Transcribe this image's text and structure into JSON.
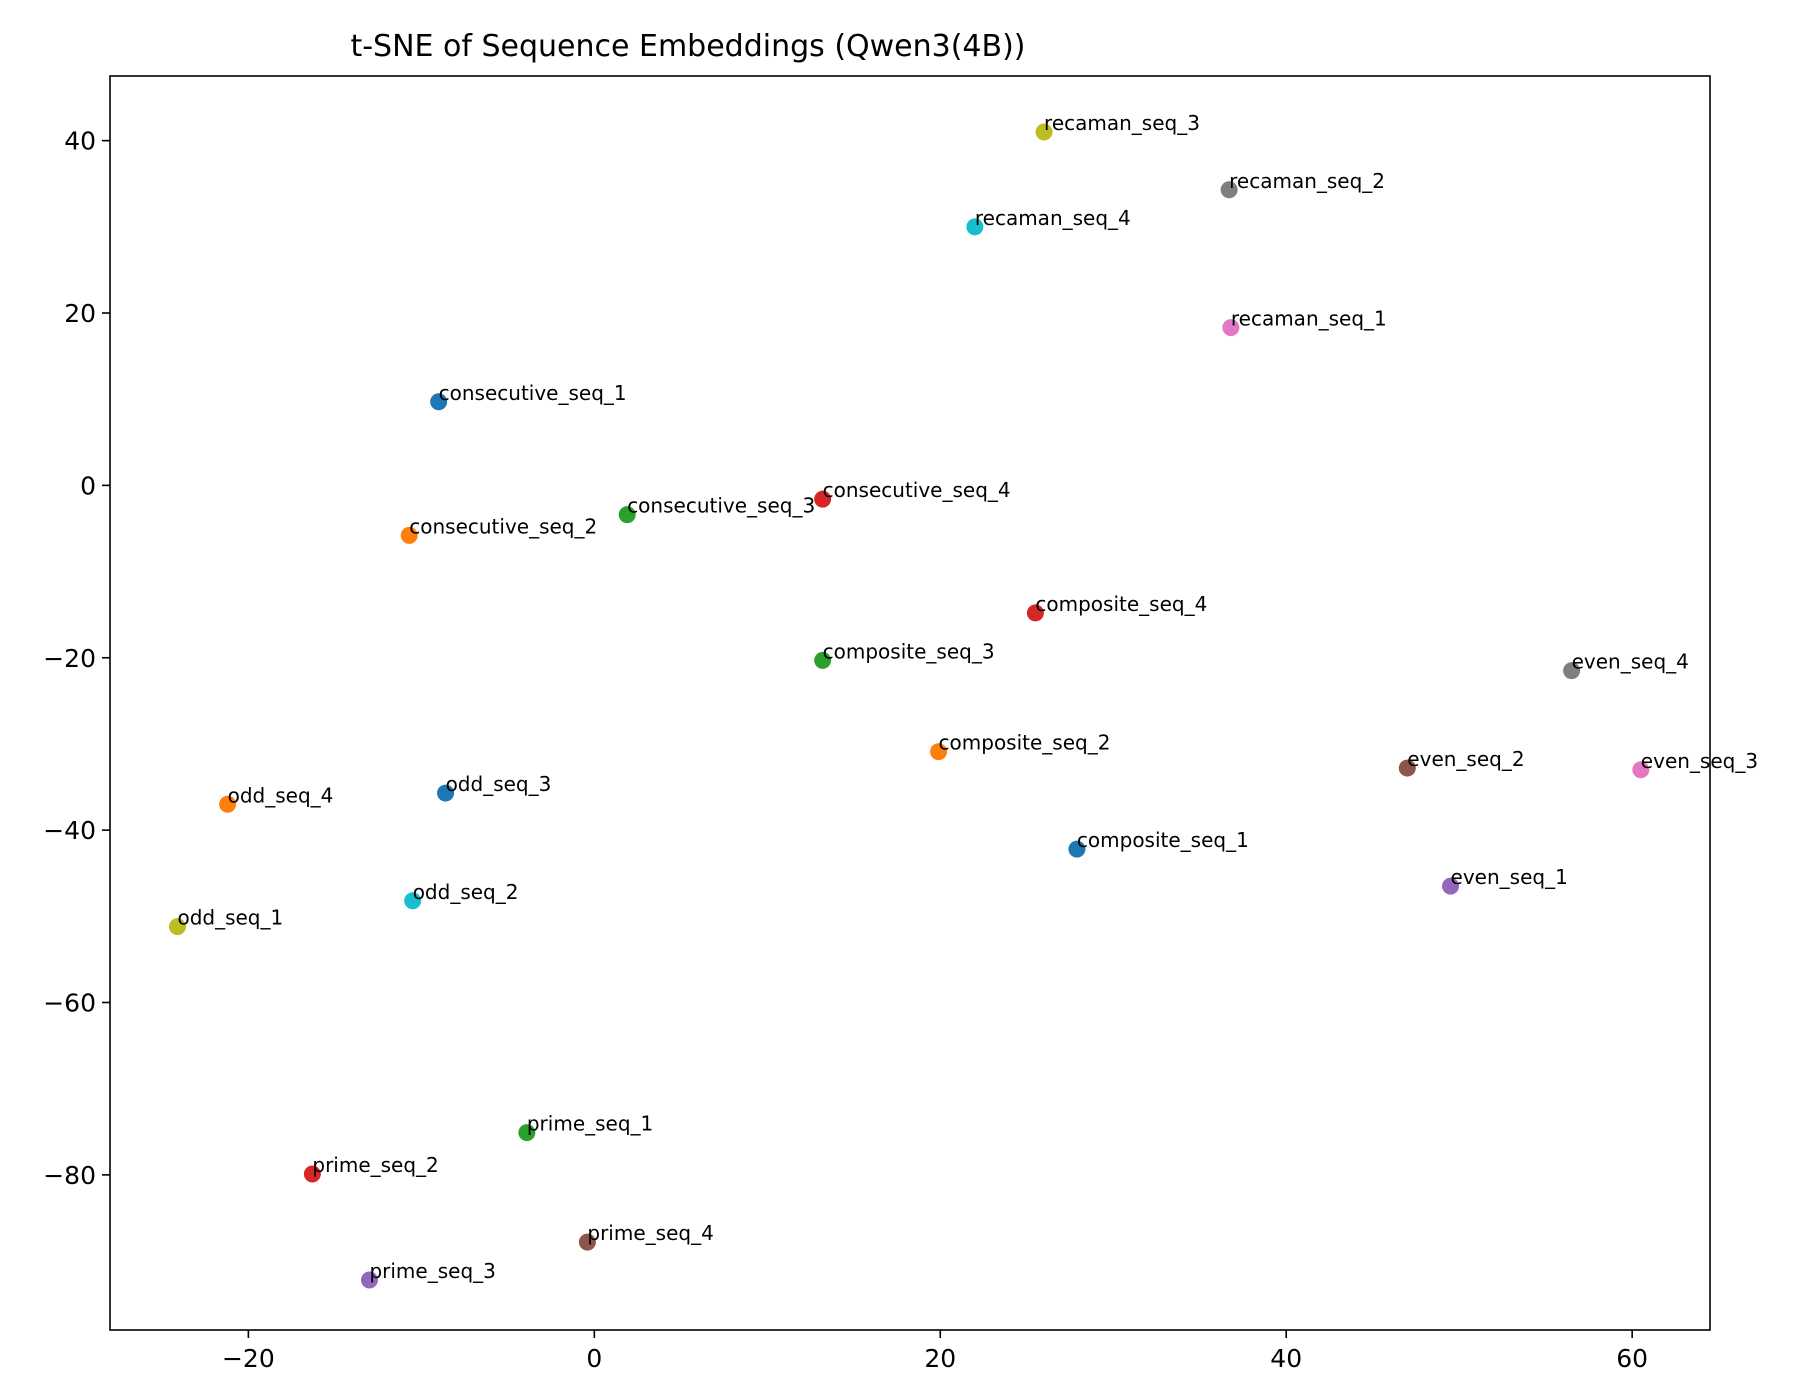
{
  "chart_data": {
    "type": "scatter",
    "title": "t-SNE of Sequence Embeddings (Qwen3(4B))",
    "xlabel": "",
    "ylabel": "",
    "xlim": [
      -28,
      64.5
    ],
    "ylim": [
      -98,
      47.5
    ],
    "xticks": [
      -20,
      0,
      20,
      40,
      60
    ],
    "yticks": [
      40,
      20,
      0,
      -20,
      -40,
      -60,
      -80
    ],
    "grid": false,
    "legend": "none",
    "points": [
      {
        "label": "recaman_seq_3",
        "x": 26.0,
        "y": 41.0,
        "color": "#bcbd22"
      },
      {
        "label": "recaman_seq_2",
        "x": 36.7,
        "y": 34.3,
        "color": "#7f7f7f"
      },
      {
        "label": "recaman_seq_4",
        "x": 22.0,
        "y": 30.0,
        "color": "#17becf"
      },
      {
        "label": "recaman_seq_1",
        "x": 36.8,
        "y": 18.3,
        "color": "#e377c2"
      },
      {
        "label": "consecutive_seq_1",
        "x": -9.0,
        "y": 9.7,
        "color": "#1f77b4"
      },
      {
        "label": "consecutive_seq_4",
        "x": 13.2,
        "y": -1.6,
        "color": "#d62728"
      },
      {
        "label": "consecutive_seq_3",
        "x": 1.9,
        "y": -3.4,
        "color": "#2ca02c"
      },
      {
        "label": "consecutive_seq_2",
        "x": -10.7,
        "y": -5.8,
        "color": "#ff7f0e"
      },
      {
        "label": "composite_seq_4",
        "x": 25.5,
        "y": -14.8,
        "color": "#d62728"
      },
      {
        "label": "composite_seq_3",
        "x": 13.2,
        "y": -20.3,
        "color": "#2ca02c"
      },
      {
        "label": "composite_seq_2",
        "x": 19.9,
        "y": -30.9,
        "color": "#ff7f0e"
      },
      {
        "label": "composite_seq_1",
        "x": 27.9,
        "y": -42.2,
        "color": "#1f77b4"
      },
      {
        "label": "even_seq_4",
        "x": 56.5,
        "y": -21.5,
        "color": "#7f7f7f"
      },
      {
        "label": "even_seq_2",
        "x": 47.0,
        "y": -32.8,
        "color": "#8c564b"
      },
      {
        "label": "even_seq_3",
        "x": 60.5,
        "y": -33.0,
        "color": "#e377c2"
      },
      {
        "label": "even_seq_1",
        "x": 49.5,
        "y": -46.5,
        "color": "#9467bd"
      },
      {
        "label": "odd_seq_4",
        "x": -21.2,
        "y": -37.0,
        "color": "#ff7f0e"
      },
      {
        "label": "odd_seq_3",
        "x": -8.6,
        "y": -35.7,
        "color": "#1f77b4"
      },
      {
        "label": "odd_seq_2",
        "x": -10.5,
        "y": -48.2,
        "color": "#17becf"
      },
      {
        "label": "odd_seq_1",
        "x": -24.1,
        "y": -51.2,
        "color": "#bcbd22"
      },
      {
        "label": "prime_seq_1",
        "x": -3.9,
        "y": -75.1,
        "color": "#2ca02c"
      },
      {
        "label": "prime_seq_2",
        "x": -16.3,
        "y": -79.9,
        "color": "#d62728"
      },
      {
        "label": "prime_seq_4",
        "x": -0.4,
        "y": -87.8,
        "color": "#8c564b"
      },
      {
        "label": "prime_seq_3",
        "x": -13.0,
        "y": -92.2,
        "color": "#9467bd"
      }
    ]
  }
}
